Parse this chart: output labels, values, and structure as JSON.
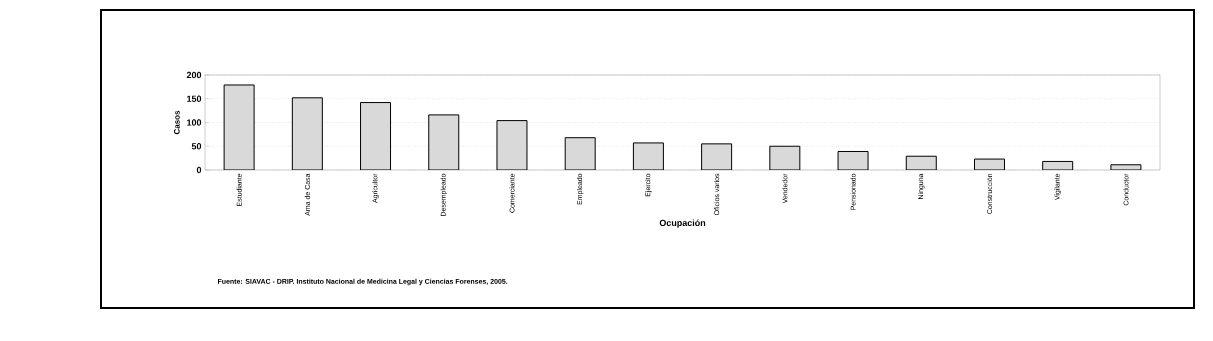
{
  "chart_data": {
    "type": "bar",
    "xlabel": "Ocupación",
    "ylabel": "Casos",
    "categories": [
      "Estudiante",
      "Ama de Casa",
      "Agricultor",
      "Desempleado",
      "Comerciante",
      "Empleado",
      "Ejercito",
      "Oficios varios",
      "Vendedor",
      "Pensionado",
      "Ninguna",
      "Construcción",
      "Vigilante",
      "Conductor"
    ],
    "values": [
      179,
      152,
      142,
      116,
      104,
      68,
      57,
      55,
      50,
      39,
      29,
      23,
      18,
      11
    ],
    "color": "#d9d9d9",
    "ylim": [
      0,
      200
    ],
    "yticks": [
      0,
      50,
      100,
      150,
      200
    ],
    "grid": "y",
    "annotations": [
      "Fuente: SIAVAC - DRIP. Instituto Nacional de Medicina Legal y Ciencias Forenses, 2005."
    ]
  }
}
